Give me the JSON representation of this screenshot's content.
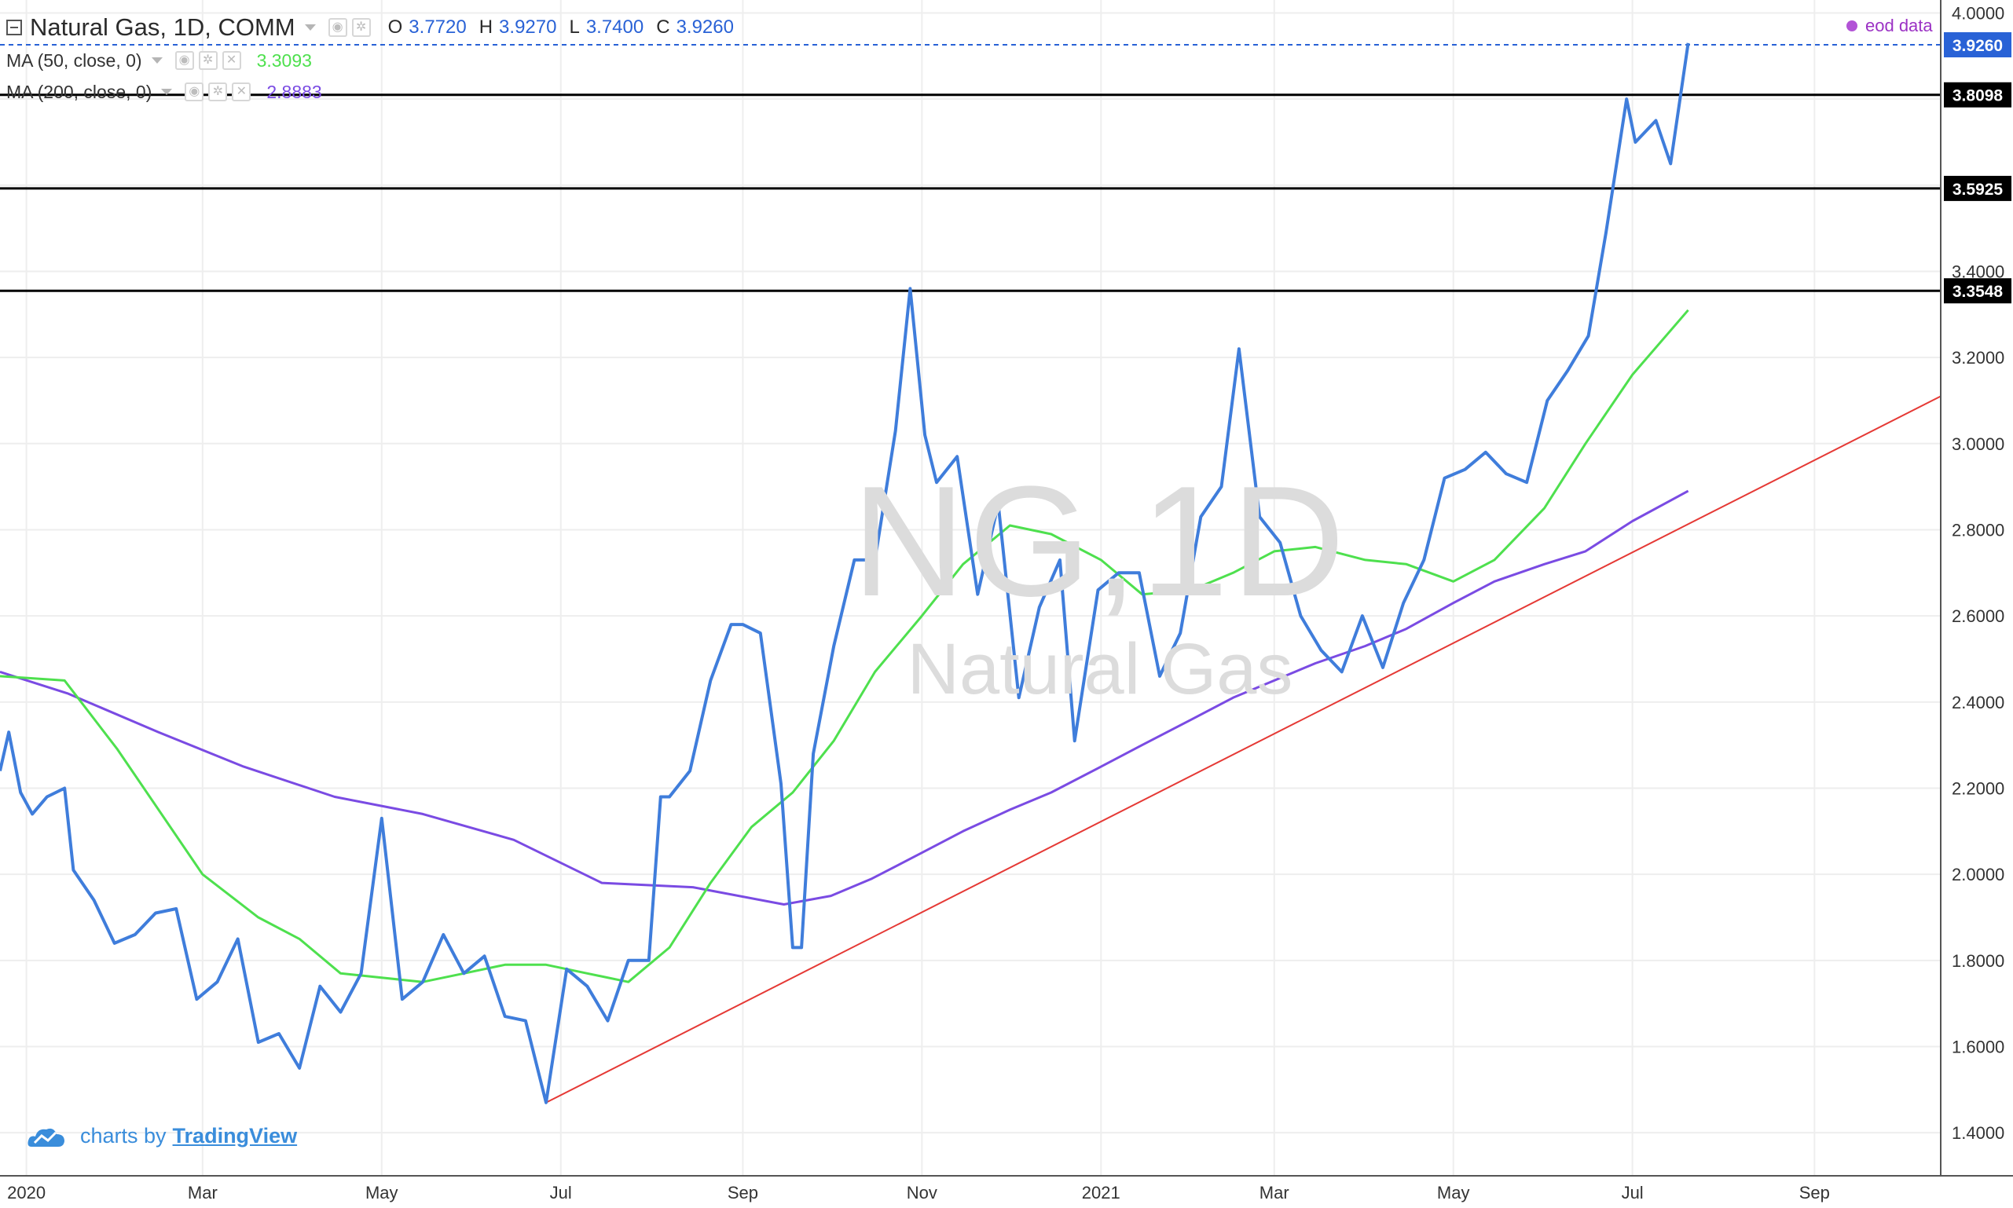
{
  "legend": {
    "symbol": "Natural Gas, 1D, COMM",
    "ohlc": [
      {
        "label": "O",
        "value": "3.7720"
      },
      {
        "label": "H",
        "value": "3.9270"
      },
      {
        "label": "L",
        "value": "3.7400"
      },
      {
        "label": "C",
        "value": "3.9260"
      }
    ],
    "ma50": {
      "label": "MA (50, close, 0)",
      "value": "3.3093"
    },
    "ma200": {
      "label": "MA (200, close, 0)",
      "value": "2.8883"
    }
  },
  "eod_label": "eod data",
  "watermark": {
    "line1": "NG,1D",
    "line2": "Natural Gas"
  },
  "branding": {
    "prefix": "charts by",
    "name": "TradingView"
  },
  "colors": {
    "price": "#3f7ddb",
    "ma50": "#4ee04e",
    "ma200": "#7a4be3",
    "trendline": "#e53935",
    "level": "#000000",
    "last_price": "#2962d6",
    "grid": "#eeeeee"
  },
  "chart_data": {
    "type": "line",
    "x_range": [
      "2019-12-23",
      "2021-10-14"
    ],
    "y_range": [
      1.3,
      4.03
    ],
    "y_ticks": [
      "1.4000",
      "1.6000",
      "1.8000",
      "2.0000",
      "2.2000",
      "2.4000",
      "2.6000",
      "2.8000",
      "3.0000",
      "3.2000",
      "3.4000",
      "3.6000",
      "3.8000",
      "4.0000"
    ],
    "x_ticks": [
      {
        "date": "2020-01-01",
        "label": "2020"
      },
      {
        "date": "2020-03-01",
        "label": "Mar"
      },
      {
        "date": "2020-05-01",
        "label": "May"
      },
      {
        "date": "2020-07-01",
        "label": "Jul"
      },
      {
        "date": "2020-09-01",
        "label": "Sep"
      },
      {
        "date": "2020-11-01",
        "label": "Nov"
      },
      {
        "date": "2021-01-01",
        "label": "2021"
      },
      {
        "date": "2021-03-01",
        "label": "Mar"
      },
      {
        "date": "2021-05-01",
        "label": "May"
      },
      {
        "date": "2021-07-01",
        "label": "Jul"
      },
      {
        "date": "2021-09-01",
        "label": "Sep"
      }
    ],
    "horizontal_levels": [
      {
        "value": 3.8098,
        "label": "3.8098"
      },
      {
        "value": 3.5925,
        "label": "3.5925"
      },
      {
        "value": 3.3548,
        "label": "3.3548"
      }
    ],
    "last_price": {
      "value": 3.926,
      "label": "3.9260"
    },
    "trendline": [
      [
        "2020-06-26",
        1.47
      ],
      [
        "2021-10-14",
        3.11
      ]
    ],
    "series": [
      {
        "name": "Natural Gas",
        "points": [
          [
            "2019-12-23",
            2.24
          ],
          [
            "2019-12-26",
            2.33
          ],
          [
            "2019-12-30",
            2.19
          ],
          [
            "2020-01-03",
            2.14
          ],
          [
            "2020-01-08",
            2.18
          ],
          [
            "2020-01-14",
            2.2
          ],
          [
            "2020-01-17",
            2.01
          ],
          [
            "2020-01-24",
            1.94
          ],
          [
            "2020-01-31",
            1.84
          ],
          [
            "2020-02-07",
            1.86
          ],
          [
            "2020-02-14",
            1.91
          ],
          [
            "2020-02-21",
            1.92
          ],
          [
            "2020-02-28",
            1.71
          ],
          [
            "2020-03-06",
            1.75
          ],
          [
            "2020-03-13",
            1.85
          ],
          [
            "2020-03-20",
            1.61
          ],
          [
            "2020-03-27",
            1.63
          ],
          [
            "2020-04-03",
            1.55
          ],
          [
            "2020-04-10",
            1.74
          ],
          [
            "2020-04-17",
            1.68
          ],
          [
            "2020-04-24",
            1.77
          ],
          [
            "2020-05-01",
            2.13
          ],
          [
            "2020-05-08",
            1.71
          ],
          [
            "2020-05-15",
            1.75
          ],
          [
            "2020-05-22",
            1.86
          ],
          [
            "2020-05-29",
            1.77
          ],
          [
            "2020-06-05",
            1.81
          ],
          [
            "2020-06-12",
            1.67
          ],
          [
            "2020-06-19",
            1.66
          ],
          [
            "2020-06-26",
            1.47
          ],
          [
            "2020-07-03",
            1.78
          ],
          [
            "2020-07-10",
            1.74
          ],
          [
            "2020-07-17",
            1.66
          ],
          [
            "2020-07-24",
            1.8
          ],
          [
            "2020-07-31",
            1.8
          ],
          [
            "2020-08-04",
            2.18
          ],
          [
            "2020-08-07",
            2.18
          ],
          [
            "2020-08-14",
            2.24
          ],
          [
            "2020-08-21",
            2.45
          ],
          [
            "2020-08-28",
            2.58
          ],
          [
            "2020-09-01",
            2.58
          ],
          [
            "2020-09-07",
            2.56
          ],
          [
            "2020-09-14",
            2.21
          ],
          [
            "2020-09-18",
            1.83
          ],
          [
            "2020-09-21",
            1.83
          ],
          [
            "2020-09-25",
            2.28
          ],
          [
            "2020-10-02",
            2.53
          ],
          [
            "2020-10-09",
            2.73
          ],
          [
            "2020-10-16",
            2.73
          ],
          [
            "2020-10-23",
            3.03
          ],
          [
            "2020-10-28",
            3.36
          ],
          [
            "2020-11-02",
            3.02
          ],
          [
            "2020-11-06",
            2.91
          ],
          [
            "2020-11-13",
            2.97
          ],
          [
            "2020-11-20",
            2.65
          ],
          [
            "2020-11-27",
            2.86
          ],
          [
            "2020-12-04",
            2.41
          ],
          [
            "2020-12-11",
            2.62
          ],
          [
            "2020-12-18",
            2.73
          ],
          [
            "2020-12-23",
            2.31
          ],
          [
            "2020-12-31",
            2.66
          ],
          [
            "2021-01-07",
            2.7
          ],
          [
            "2021-01-14",
            2.7
          ],
          [
            "2021-01-21",
            2.46
          ],
          [
            "2021-01-28",
            2.56
          ],
          [
            "2021-02-04",
            2.83
          ],
          [
            "2021-02-11",
            2.9
          ],
          [
            "2021-02-17",
            3.22
          ],
          [
            "2021-02-24",
            2.83
          ],
          [
            "2021-03-03",
            2.77
          ],
          [
            "2021-03-10",
            2.6
          ],
          [
            "2021-03-17",
            2.52
          ],
          [
            "2021-03-24",
            2.47
          ],
          [
            "2021-03-31",
            2.6
          ],
          [
            "2021-04-07",
            2.48
          ],
          [
            "2021-04-14",
            2.63
          ],
          [
            "2021-04-21",
            2.73
          ],
          [
            "2021-04-28",
            2.92
          ],
          [
            "2021-05-05",
            2.94
          ],
          [
            "2021-05-12",
            2.98
          ],
          [
            "2021-05-19",
            2.93
          ],
          [
            "2021-05-26",
            2.91
          ],
          [
            "2021-06-02",
            3.1
          ],
          [
            "2021-06-09",
            3.17
          ],
          [
            "2021-06-16",
            3.25
          ],
          [
            "2021-06-22",
            3.49
          ],
          [
            "2021-06-29",
            3.8
          ],
          [
            "2021-07-02",
            3.7
          ],
          [
            "2021-07-09",
            3.75
          ],
          [
            "2021-07-14",
            3.65
          ],
          [
            "2021-07-20",
            3.93
          ]
        ]
      },
      {
        "name": "MA (50, close, 0)",
        "points": [
          [
            "2019-12-23",
            2.46
          ],
          [
            "2020-01-14",
            2.45
          ],
          [
            "2020-02-01",
            2.29
          ],
          [
            "2020-03-01",
            2.0
          ],
          [
            "2020-03-20",
            1.9
          ],
          [
            "2020-04-03",
            1.85
          ],
          [
            "2020-04-17",
            1.77
          ],
          [
            "2020-05-01",
            1.76
          ],
          [
            "2020-05-15",
            1.75
          ],
          [
            "2020-05-29",
            1.77
          ],
          [
            "2020-06-12",
            1.79
          ],
          [
            "2020-06-26",
            1.79
          ],
          [
            "2020-07-10",
            1.77
          ],
          [
            "2020-07-24",
            1.75
          ],
          [
            "2020-08-07",
            1.83
          ],
          [
            "2020-08-21",
            1.98
          ],
          [
            "2020-09-04",
            2.11
          ],
          [
            "2020-09-18",
            2.19
          ],
          [
            "2020-10-02",
            2.31
          ],
          [
            "2020-10-16",
            2.47
          ],
          [
            "2020-11-01",
            2.6
          ],
          [
            "2020-11-15",
            2.72
          ],
          [
            "2020-12-01",
            2.81
          ],
          [
            "2020-12-15",
            2.79
          ],
          [
            "2021-01-01",
            2.73
          ],
          [
            "2021-01-15",
            2.65
          ],
          [
            "2021-02-01",
            2.66
          ],
          [
            "2021-02-15",
            2.7
          ],
          [
            "2021-03-01",
            2.75
          ],
          [
            "2021-03-15",
            2.76
          ],
          [
            "2021-04-01",
            2.73
          ],
          [
            "2021-04-15",
            2.72
          ],
          [
            "2021-05-01",
            2.68
          ],
          [
            "2021-05-15",
            2.73
          ],
          [
            "2021-06-01",
            2.85
          ],
          [
            "2021-06-15",
            3.0
          ],
          [
            "2021-07-01",
            3.16
          ],
          [
            "2021-07-20",
            3.31
          ]
        ]
      },
      {
        "name": "MA (200, close, 0)",
        "points": [
          [
            "2019-12-23",
            2.47
          ],
          [
            "2020-01-15",
            2.42
          ],
          [
            "2020-02-15",
            2.33
          ],
          [
            "2020-03-15",
            2.25
          ],
          [
            "2020-04-15",
            2.18
          ],
          [
            "2020-05-15",
            2.14
          ],
          [
            "2020-06-15",
            2.08
          ],
          [
            "2020-07-15",
            1.98
          ],
          [
            "2020-08-15",
            1.97
          ],
          [
            "2020-09-15",
            1.93
          ],
          [
            "2020-10-01",
            1.95
          ],
          [
            "2020-10-15",
            1.99
          ],
          [
            "2020-11-01",
            2.05
          ],
          [
            "2020-11-15",
            2.1
          ],
          [
            "2020-12-01",
            2.15
          ],
          [
            "2020-12-15",
            2.19
          ],
          [
            "2021-01-01",
            2.25
          ],
          [
            "2021-01-15",
            2.3
          ],
          [
            "2021-02-01",
            2.36
          ],
          [
            "2021-02-15",
            2.41
          ],
          [
            "2021-03-01",
            2.45
          ],
          [
            "2021-03-15",
            2.49
          ],
          [
            "2021-04-01",
            2.53
          ],
          [
            "2021-04-15",
            2.57
          ],
          [
            "2021-05-01",
            2.63
          ],
          [
            "2021-05-15",
            2.68
          ],
          [
            "2021-06-01",
            2.72
          ],
          [
            "2021-06-15",
            2.75
          ],
          [
            "2021-07-01",
            2.82
          ],
          [
            "2021-07-20",
            2.89
          ]
        ]
      }
    ]
  }
}
